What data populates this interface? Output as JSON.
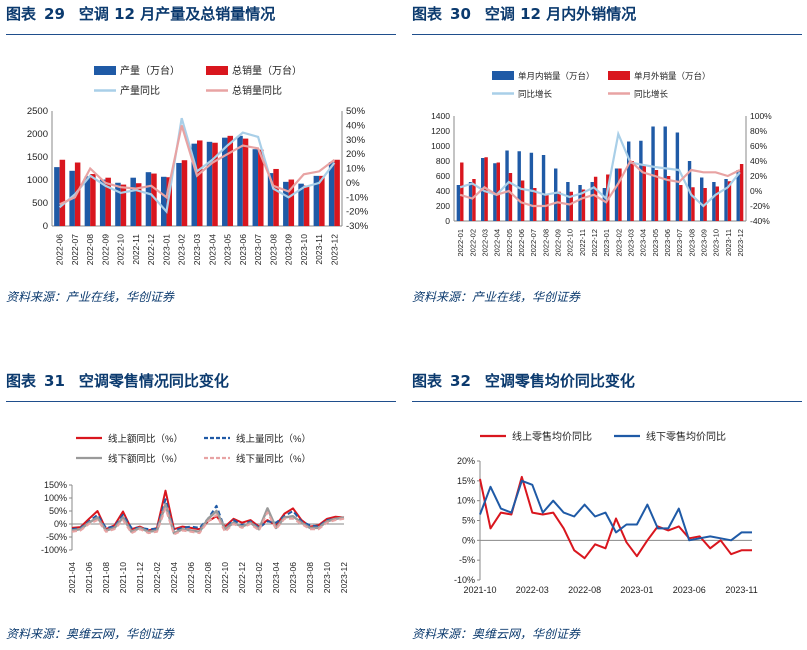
{
  "panels": [
    {
      "label": "图表",
      "number": "29",
      "title": "空调 12 月产量及总销量情况",
      "source": "资料来源：产业在线，华创证券"
    },
    {
      "label": "图表",
      "number": "30",
      "title": "空调 12 月内外销情况",
      "source": "资料来源：产业在线，华创证券"
    },
    {
      "label": "图表",
      "number": "31",
      "title": "空调零售情况同比变化",
      "source": "资料来源：奥维云网，华创证券"
    },
    {
      "label": "图表",
      "number": "32",
      "title": "空调零售均价同比变化",
      "source": "资料来源：奥维云网，华创证券"
    }
  ],
  "colors": {
    "title": "#0b3a6e",
    "rule": "#1f4e8c",
    "blue_bar": "#1f5aa6",
    "red_bar": "#d9161e",
    "light_blue": "#a9cfe8",
    "pink": "#e8a3a3",
    "line_red": "#d9161e",
    "line_blue": "#1f5aa6",
    "gray": "#9a9a9a"
  },
  "chart_data": [
    {
      "type": "bar",
      "id": "chart29",
      "categories": [
        "2022-06",
        "2022-07",
        "2022-08",
        "2022-09",
        "2022-10",
        "2022-11",
        "2022-12",
        "2023-01",
        "2023-02",
        "2023-03",
        "2023-04",
        "2023-05",
        "2023-06",
        "2023-07",
        "2023-08",
        "2023-09",
        "2023-10",
        "2023-11",
        "2023-12"
      ],
      "ylim": [
        0,
        2500
      ],
      "yticks": [
        0,
        500,
        1000,
        1500,
        2000,
        2500
      ],
      "y2lim": [
        -30,
        50
      ],
      "y2ticks": [
        -30,
        -20,
        -10,
        0,
        10,
        20,
        30,
        40,
        50
      ],
      "series": [
        {
          "name": "产量（万台）",
          "kind": "bar",
          "axis": "left",
          "color": "#1f5aa6",
          "values": [
            1280,
            1200,
            1080,
            1010,
            940,
            1050,
            1170,
            1070,
            1370,
            1790,
            1830,
            1920,
            1960,
            1670,
            1150,
            960,
            920,
            1090,
            1390
          ]
        },
        {
          "name": "总销量（万台）",
          "kind": "bar",
          "axis": "left",
          "color": "#d9161e",
          "values": [
            1440,
            1380,
            1130,
            1050,
            900,
            930,
            1140,
            1060,
            1430,
            1860,
            1810,
            1960,
            1900,
            1660,
            1240,
            1010,
            880,
            1090,
            1440
          ]
        },
        {
          "name": "产量同比",
          "kind": "line",
          "axis": "right",
          "color": "#a9cfe8",
          "values": [
            -17,
            -8,
            5,
            -2,
            -7,
            -5,
            -8,
            -20,
            45,
            8,
            16,
            26,
            35,
            32,
            -4,
            -10,
            -3,
            0,
            14
          ]
        },
        {
          "name": "总销量同比",
          "kind": "line",
          "axis": "right",
          "color": "#e8a3a3",
          "values": [
            -15,
            -10,
            10,
            0,
            -3,
            -4,
            -2,
            -10,
            40,
            5,
            14,
            20,
            26,
            24,
            -2,
            -6,
            6,
            8,
            16
          ]
        }
      ],
      "yticks_labels": [
        "0",
        "500",
        "1000",
        "1500",
        "2000",
        "2500"
      ],
      "y2ticks_labels": [
        "-30%",
        "-20%",
        "-10%",
        "0%",
        "10%",
        "20%",
        "30%",
        "40%",
        "50%"
      ]
    },
    {
      "type": "bar",
      "id": "chart30",
      "categories": [
        "2022-01",
        "2022-02",
        "2022-03",
        "2022-04",
        "2022-05",
        "2022-06",
        "2022-07",
        "2022-08",
        "2022-09",
        "2022-10",
        "2022-11",
        "2022-12",
        "2023-01",
        "2023-02",
        "2023-03",
        "2023-04",
        "2023-05",
        "2023-06",
        "2023-07",
        "2023-08",
        "2023-09",
        "2023-10",
        "2023-11",
        "2023-12"
      ],
      "ylim": [
        0,
        1400
      ],
      "yticks": [
        0,
        200,
        400,
        600,
        800,
        1000,
        1200,
        1400
      ],
      "y2lim": [
        -40,
        100
      ],
      "y2ticks": [
        -40,
        -20,
        0,
        20,
        40,
        60,
        80,
        100
      ],
      "series": [
        {
          "name": "单月内销量（万台）",
          "kind": "bar",
          "axis": "left",
          "color": "#1f5aa6",
          "values": [
            480,
            520,
            840,
            770,
            940,
            930,
            910,
            880,
            700,
            520,
            480,
            520,
            440,
            700,
            1060,
            1070,
            1260,
            1260,
            1180,
            800,
            580,
            520,
            560,
            680
          ]
        },
        {
          "name": "单月外销量（万台）",
          "kind": "bar",
          "axis": "left",
          "color": "#d9161e",
          "values": [
            780,
            560,
            850,
            780,
            640,
            540,
            440,
            350,
            390,
            390,
            420,
            590,
            620,
            700,
            800,
            750,
            680,
            600,
            480,
            450,
            440,
            460,
            530,
            760
          ]
        },
        {
          "name": "同比增长",
          "kind": "line",
          "axis": "right",
          "color": "#a9cfe8",
          "values": [
            5,
            10,
            0,
            -5,
            12,
            3,
            0,
            -5,
            -2,
            -8,
            -3,
            5,
            -10,
            76,
            38,
            35,
            32,
            30,
            28,
            -5,
            -20,
            -5,
            5,
            25
          ]
        },
        {
          "name": "同比增长",
          "kind": "line",
          "axis": "right",
          "color": "#e8a3a3",
          "values": [
            -5,
            -10,
            5,
            -5,
            0,
            -15,
            -20,
            -20,
            -15,
            -18,
            -10,
            -5,
            -15,
            10,
            40,
            25,
            20,
            15,
            12,
            28,
            25,
            25,
            20,
            28
          ]
        }
      ],
      "yticks_labels": [
        "0",
        "200",
        "400",
        "600",
        "800",
        "1000",
        "1200",
        "1400"
      ],
      "y2ticks_labels": [
        "-40%",
        "-20%",
        "0%",
        "20%",
        "40%",
        "60%",
        "80%",
        "100%"
      ]
    },
    {
      "type": "line",
      "id": "chart31",
      "categories": [
        "2021-04",
        "2021-05",
        "2021-06",
        "2021-07",
        "2021-08",
        "2021-09",
        "2021-10",
        "2021-11",
        "2021-12",
        "2022-01",
        "2022-02",
        "2022-03",
        "2022-04",
        "2022-05",
        "2022-06",
        "2022-07",
        "2022-08",
        "2022-09",
        "2022-10",
        "2022-11",
        "2022-12",
        "2023-01",
        "2023-02",
        "2023-03",
        "2023-04",
        "2023-05",
        "2023-06",
        "2023-07",
        "2023-08",
        "2023-09",
        "2023-10",
        "2023-11",
        "2023-12"
      ],
      "xtick_labels": [
        "2021-04",
        "2021-06",
        "2021-08",
        "2021-10",
        "2021-12",
        "2022-02",
        "2022-04",
        "2022-06",
        "2022-08",
        "2022-10",
        "2022-12",
        "2023-02",
        "2023-04",
        "2023-06",
        "2023-08",
        "2023-10",
        "2023-12"
      ],
      "ylim": [
        -100,
        150
      ],
      "yticks": [
        -100,
        -50,
        0,
        50,
        100,
        150
      ],
      "yticks_labels": [
        "-100%",
        "-50%",
        "0%",
        "50%",
        "100%",
        "150%"
      ],
      "series": [
        {
          "name": "线上额同比（%）",
          "color": "#d9161e",
          "dash": "",
          "width": 2,
          "values": [
            -15,
            -12,
            20,
            50,
            -20,
            -5,
            48,
            -20,
            -10,
            -25,
            -15,
            128,
            -20,
            -10,
            -15,
            -20,
            10,
            30,
            -10,
            20,
            5,
            15,
            -10,
            15,
            -5,
            40,
            60,
            15,
            -10,
            -5,
            20,
            28,
            25
          ]
        },
        {
          "name": "线上量同比（%）",
          "color": "#1f5aa6",
          "dash": "5,3",
          "width": 2,
          "values": [
            -20,
            -15,
            10,
            35,
            -15,
            -10,
            35,
            -15,
            -15,
            -20,
            -18,
            95,
            -25,
            -15,
            -10,
            -15,
            20,
            70,
            -20,
            15,
            -5,
            10,
            -15,
            10,
            5,
            30,
            50,
            10,
            -5,
            -10,
            15,
            20,
            22
          ]
        },
        {
          "name": "线下额同比（%）",
          "color": "#9a9a9a",
          "dash": "",
          "width": 2.5,
          "values": [
            -25,
            -20,
            5,
            25,
            -25,
            -15,
            25,
            -30,
            -15,
            -30,
            -25,
            75,
            -35,
            -20,
            -25,
            -30,
            20,
            50,
            -20,
            5,
            -10,
            5,
            -20,
            60,
            -15,
            25,
            30,
            5,
            -15,
            -15,
            10,
            20,
            25
          ]
        },
        {
          "name": "线下量同比（%）",
          "color": "#e8a3a3",
          "dash": "5,3",
          "width": 2,
          "values": [
            -30,
            -25,
            0,
            15,
            -30,
            -20,
            15,
            -35,
            -20,
            -35,
            -30,
            60,
            -40,
            -25,
            -30,
            -35,
            10,
            35,
            -30,
            0,
            -15,
            0,
            -25,
            45,
            -20,
            20,
            20,
            0,
            -20,
            -20,
            5,
            15,
            20
          ]
        }
      ]
    },
    {
      "type": "line",
      "id": "chart32",
      "categories": [
        "2021-10",
        "2021-11",
        "2021-12",
        "2022-01",
        "2022-02",
        "2022-03",
        "2022-04",
        "2022-05",
        "2022-06",
        "2022-07",
        "2022-08",
        "2022-09",
        "2022-10",
        "2022-11",
        "2022-12",
        "2023-01",
        "2023-02",
        "2023-03",
        "2023-04",
        "2023-05",
        "2023-06",
        "2023-07",
        "2023-08",
        "2023-09",
        "2023-10",
        "2023-11",
        "2023-12"
      ],
      "xtick_labels": [
        "2021-10",
        "2022-03",
        "2022-08",
        "2023-01",
        "2023-06",
        "2023-11"
      ],
      "ylim": [
        -10,
        20
      ],
      "yticks": [
        -10,
        -5,
        0,
        5,
        10,
        15,
        20
      ],
      "yticks_labels": [
        "-10%",
        "-5%",
        "0%",
        "5%",
        "10%",
        "15%",
        "20%"
      ],
      "series": [
        {
          "name": "线上零售均价同比",
          "color": "#d9161e",
          "dash": "",
          "width": 2,
          "values": [
            15.5,
            3,
            7,
            6.5,
            16,
            7,
            6.5,
            7,
            3,
            -2.5,
            -4.5,
            -1,
            -2,
            5.5,
            -0.5,
            -4,
            0,
            3.5,
            2.5,
            3.5,
            0.5,
            1,
            -2,
            0,
            -3.5,
            -2.5,
            -2.5
          ]
        },
        {
          "name": "线下零售均价同比",
          "color": "#1f5aa6",
          "dash": "",
          "width": 2,
          "values": [
            6.5,
            13.5,
            8,
            7,
            15,
            14,
            7,
            10,
            7,
            6,
            9,
            6,
            7,
            2,
            4,
            4,
            9,
            3,
            3,
            8,
            0,
            0.5,
            1,
            0.5,
            0,
            2,
            2
          ]
        }
      ]
    }
  ]
}
